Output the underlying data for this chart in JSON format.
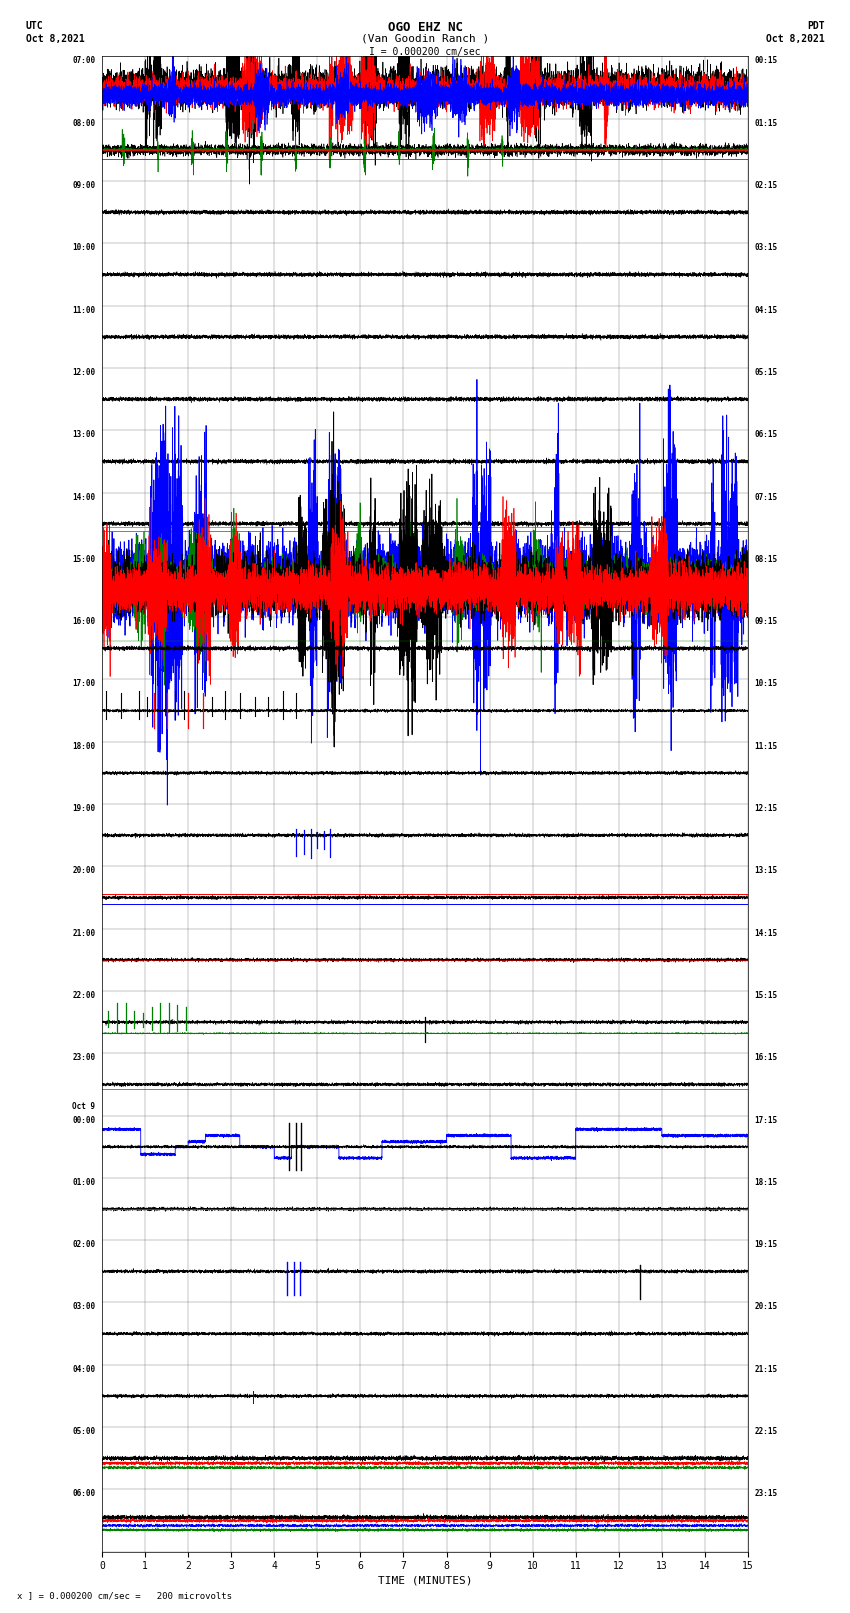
{
  "title_line1": "OGO EHZ NC",
  "title_line2": "(Van Goodin Ranch )",
  "title_line3": "I = 0.000200 cm/sec",
  "left_header_line1": "UTC",
  "left_header_line2": "Oct 8,2021",
  "right_header_line1": "PDT",
  "right_header_line2": "Oct 8,2021",
  "xlabel": "TIME (MINUTES)",
  "footer": "x ] = 0.000200 cm/sec =   200 microvolts",
  "x_ticks": [
    0,
    1,
    2,
    3,
    4,
    5,
    6,
    7,
    8,
    9,
    10,
    11,
    12,
    13,
    14,
    15
  ],
  "time_range": [
    0,
    15
  ],
  "num_rows": 24,
  "utc_labels": [
    "07:00",
    "08:00",
    "09:00",
    "10:00",
    "11:00",
    "12:00",
    "13:00",
    "14:00",
    "15:00",
    "16:00",
    "17:00",
    "18:00",
    "19:00",
    "20:00",
    "21:00",
    "22:00",
    "23:00",
    "Oct 9\n00:00",
    "01:00",
    "02:00",
    "03:00",
    "04:00",
    "05:00",
    "06:00"
  ],
  "pdt_labels": [
    "00:15",
    "01:15",
    "02:15",
    "03:15",
    "04:15",
    "05:15",
    "06:15",
    "07:15",
    "08:15",
    "09:15",
    "10:15",
    "11:15",
    "12:15",
    "13:15",
    "14:15",
    "15:15",
    "16:15",
    "17:15",
    "18:15",
    "19:15",
    "20:15",
    "21:15",
    "22:15",
    "23:15"
  ],
  "background_color": "#ffffff",
  "grid_color": "#777777",
  "line_colors": {
    "black": "#000000",
    "red": "#ff0000",
    "blue": "#0000ff",
    "green": "#008000"
  },
  "seed": 42
}
